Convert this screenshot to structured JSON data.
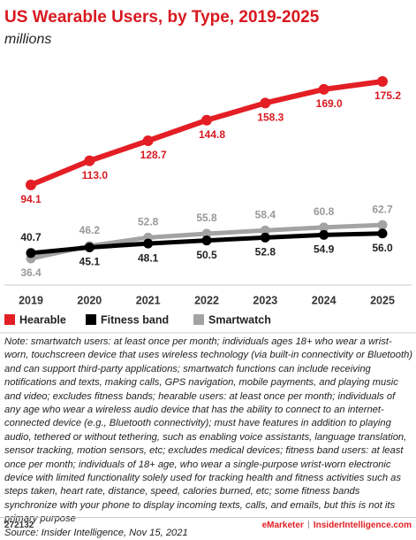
{
  "chart_data": {
    "type": "line",
    "title": "US Wearable Users, by Type, 2019-2025",
    "subtitle": "millions",
    "categories": [
      "2019",
      "2020",
      "2021",
      "2022",
      "2023",
      "2024",
      "2025"
    ],
    "series": [
      {
        "name": "Hearable",
        "color": "#e31e24",
        "values": [
          94.1,
          113.0,
          128.7,
          144.8,
          158.3,
          169.0,
          175.2
        ],
        "value_labels": [
          "94.1",
          "113.0",
          "128.7",
          "144.8",
          "158.3",
          "169.0",
          "175.2"
        ]
      },
      {
        "name": "Fitness band",
        "color": "#000000",
        "values": [
          40.7,
          45.1,
          48.1,
          50.5,
          52.8,
          54.9,
          56.0
        ],
        "value_labels": [
          "40.7",
          "45.1",
          "48.1",
          "50.5",
          "52.8",
          "54.9",
          "56.0"
        ]
      },
      {
        "name": "Smartwatch",
        "color": "#a3a3a3",
        "values": [
          36.4,
          46.2,
          52.8,
          55.8,
          58.4,
          60.8,
          62.7
        ],
        "value_labels": [
          "36.4",
          "46.2",
          "52.8",
          "55.8",
          "58.4",
          "60.8",
          "62.7"
        ]
      }
    ],
    "note": "Note: smartwatch users: at least once per month; individuals ages 18+ who wear a wrist-worn, touchscreen device that uses wireless technology (via built-in connectivity or Bluetooth) and can support third-party applications; smartwatch functions can include receiving notifications and texts, making calls, GPS navigation, mobile payments, and playing music and video; excludes fitness bands; hearable users: at least once per month; individuals of any age who wear a wireless audio device that has the ability to connect to an internet-connected device (e.g., Bluetooth connectivity); must have features in addition to playing audio, tethered or without tethering, such as enabling voice assistants, language translation, sensor tracking, motion sensors, etc; excludes medical devices; fitness band users: at least once per month; individuals of 18+ age, who wear a single-purpose wrist-worn electronic device with limited functionality solely used for tracking health and fitness activities such as steps taken, heart rate, distance, speed, calories burned, etc; some fitness bands synchronize with your phone to display incoming texts, calls, and emails, but this is not its primary purpose",
    "source": "Source: Insider Intelligence, Nov 15, 2021"
  },
  "footer": {
    "id": "272132",
    "brand": "eMarketer",
    "site": "InsiderIntelligence.com"
  }
}
